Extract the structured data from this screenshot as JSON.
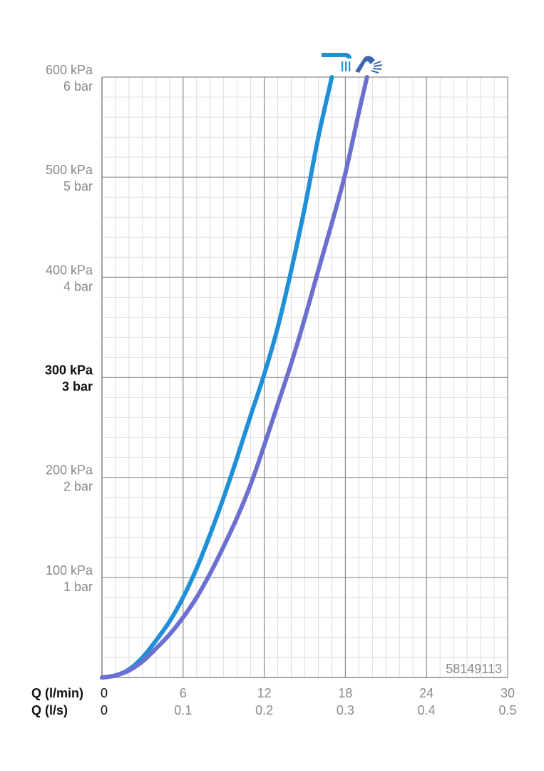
{
  "chart_data": {
    "type": "line",
    "title": "",
    "product_code": "58149113",
    "colors": {
      "series1": "#1f8fd8",
      "series2": "#6b6fd0",
      "grid_major": "#8c8c8c",
      "grid_minor": "#dcdcdc"
    },
    "x_axis": {
      "label_primary": "Q (l/min)",
      "label_secondary": "Q (l/s)",
      "range": [
        0,
        30
      ],
      "ticks": [
        {
          "value": 0,
          "label": "0",
          "label_secondary": "0"
        },
        {
          "value": 6,
          "label": "6",
          "label_secondary": "0.1"
        },
        {
          "value": 12,
          "label": "12",
          "label_secondary": "0.2"
        },
        {
          "value": 18,
          "label": "18",
          "label_secondary": "0.3"
        },
        {
          "value": 24,
          "label": "24",
          "label_secondary": "0.4"
        },
        {
          "value": 30,
          "label": "30",
          "label_secondary": "0.5"
        }
      ],
      "minor_step": 1
    },
    "y_axis": {
      "range": [
        0,
        600
      ],
      "ticks": [
        {
          "value": 100,
          "label": "100 kPa",
          "label_secondary": "1 bar",
          "bold": false
        },
        {
          "value": 200,
          "label": "200 kPa",
          "label_secondary": "2 bar",
          "bold": false
        },
        {
          "value": 300,
          "label": "300 kPa",
          "label_secondary": "3 bar",
          "bold": true
        },
        {
          "value": 400,
          "label": "400 kPa",
          "label_secondary": "4 bar",
          "bold": false
        },
        {
          "value": 500,
          "label": "500 kPa",
          "label_secondary": "5 bar",
          "bold": false
        },
        {
          "value": 600,
          "label": "600 kPa",
          "label_secondary": "6 bar",
          "bold": false
        }
      ],
      "minor_step": 20
    },
    "grid": true,
    "series": [
      {
        "icon": "rain-shower-head-icon",
        "x": [
          0,
          1,
          2,
          3,
          4,
          5,
          6,
          7,
          8,
          9,
          10,
          11,
          12,
          13,
          14,
          15,
          16,
          17
        ],
        "y": [
          0,
          2,
          8,
          20,
          37,
          56,
          80,
          109,
          143,
          180,
          220,
          262,
          303,
          350,
          407,
          470,
          540,
          600
        ]
      },
      {
        "icon": "hand-shower-icon",
        "x": [
          0,
          1,
          2,
          3,
          4,
          5,
          6,
          7,
          8,
          9,
          10,
          11,
          12,
          13,
          14,
          15,
          16,
          17,
          18,
          19,
          19.6
        ],
        "y": [
          0,
          2,
          7,
          16,
          29,
          43,
          60,
          80,
          104,
          131,
          160,
          193,
          232,
          273,
          314,
          359,
          407,
          454,
          504,
          565,
          600
        ]
      }
    ]
  }
}
